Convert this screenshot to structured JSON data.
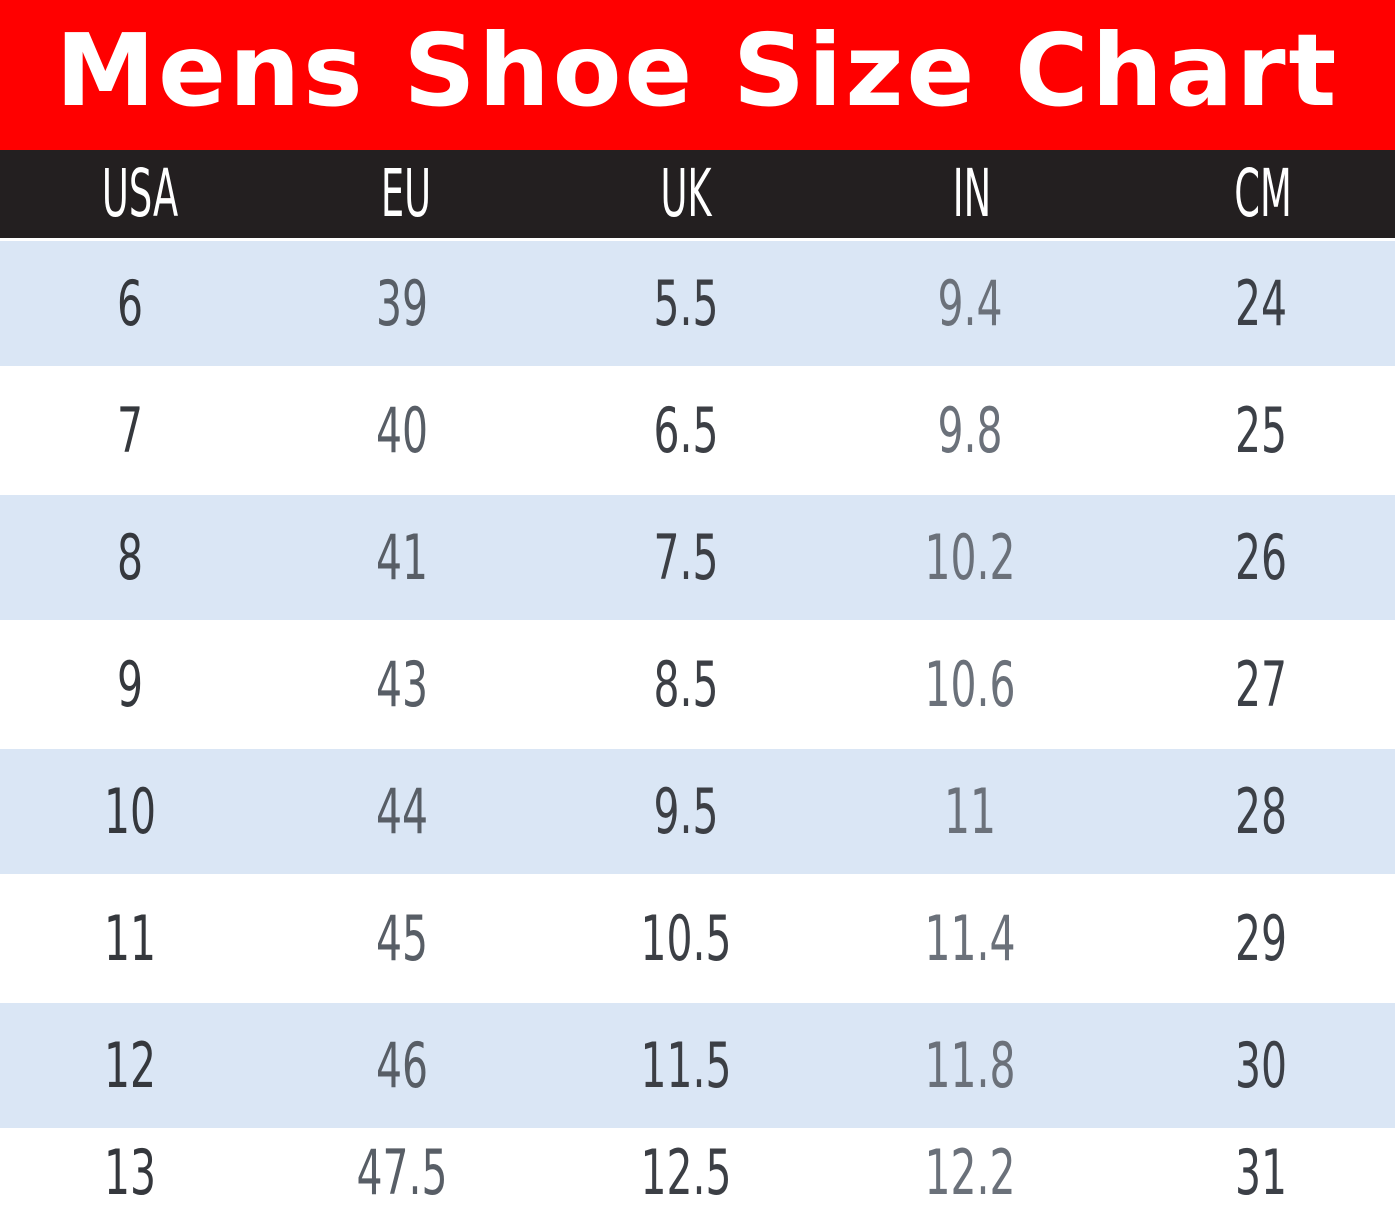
{
  "title": "Mens Shoe Size Chart",
  "colors": {
    "title_bg": "#ff0000",
    "title_text": "#ffffff",
    "header_bg": "#231f20",
    "header_text": "#ffffff",
    "row_alt_bg": "#dae6f5",
    "row_bg": "#ffffff",
    "col_text": [
      "#35383d",
      "#585e66",
      "#3c3f45",
      "#6b717a",
      "#3c4047"
    ]
  },
  "chart_data": {
    "type": "table",
    "title": "Mens Shoe Size Chart",
    "columns": [
      "USA",
      "EU",
      "UK",
      "IN",
      "CM"
    ],
    "rows": [
      [
        "6",
        "39",
        "5.5",
        "9.4",
        "24"
      ],
      [
        "7",
        "40",
        "6.5",
        "9.8",
        "25"
      ],
      [
        "8",
        "41",
        "7.5",
        "10.2",
        "26"
      ],
      [
        "9",
        "43",
        "8.5",
        "10.6",
        "27"
      ],
      [
        "10",
        "44",
        "9.5",
        "11",
        "28"
      ],
      [
        "11",
        "45",
        "10.5",
        "11.4",
        "29"
      ],
      [
        "12",
        "46",
        "11.5",
        "11.8",
        "30"
      ],
      [
        "13",
        "47.5",
        "12.5",
        "12.2",
        "31"
      ]
    ]
  }
}
